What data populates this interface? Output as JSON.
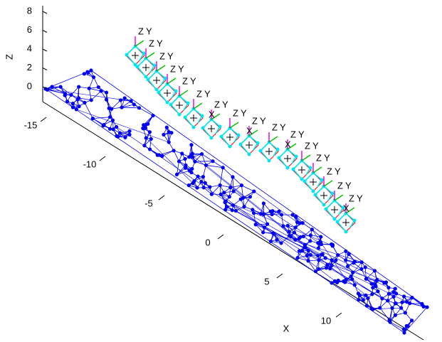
{
  "chart_data": {
    "type": "mesh3d",
    "xlabel": "X",
    "zlabel": "Z",
    "xticks": [
      -15,
      -10,
      -5,
      0,
      5,
      10
    ],
    "zticks": [
      0,
      2,
      4,
      6,
      8
    ],
    "mesh_color": "#0000ee",
    "camera_labels": [
      "Z",
      "Y",
      "X"
    ]
  }
}
